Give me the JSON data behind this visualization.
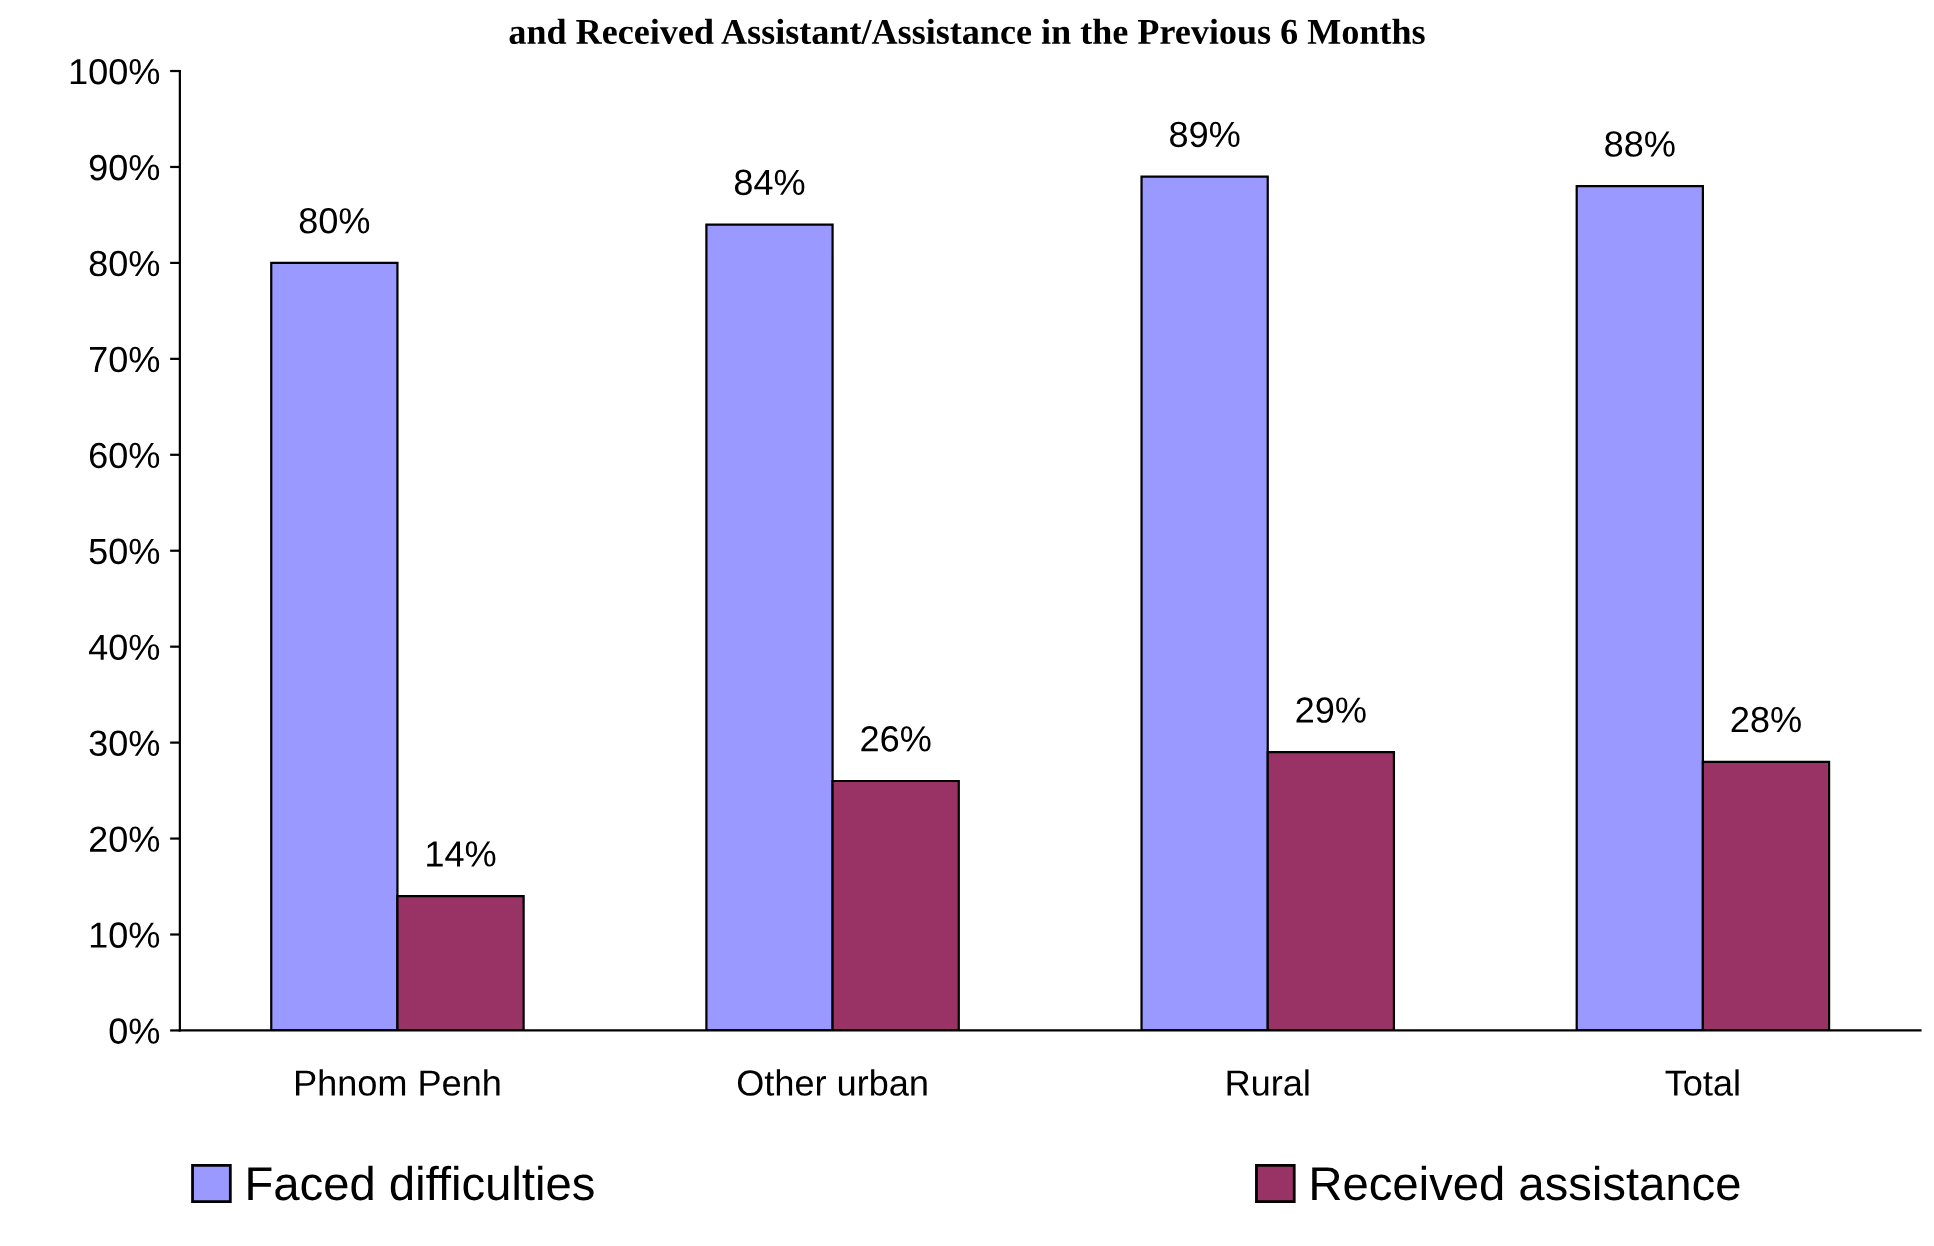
{
  "chart_data": {
    "type": "bar",
    "title": "and Received Assistant/Assistance in the Previous 6 Months",
    "categories": [
      "Phnom Penh",
      "Other urban",
      "Rural",
      "Total"
    ],
    "series": [
      {
        "name": "Faced difficulties",
        "color": "#9999ff",
        "values": [
          80,
          84,
          89,
          88
        ],
        "value_labels": [
          "80%",
          "84%",
          "89%",
          "88%"
        ]
      },
      {
        "name": "Received assistance",
        "color": "#993366",
        "values": [
          14,
          26,
          29,
          28
        ],
        "value_labels": [
          "14%",
          "26%",
          "29%",
          "28%"
        ]
      }
    ],
    "ylim": [
      0,
      100
    ],
    "yticks": [
      {
        "value": 0,
        "label": "0%"
      },
      {
        "value": 10,
        "label": "10%"
      },
      {
        "value": 20,
        "label": "20%"
      },
      {
        "value": 30,
        "label": "30%"
      },
      {
        "value": 40,
        "label": "40%"
      },
      {
        "value": 50,
        "label": "50%"
      },
      {
        "value": 60,
        "label": "60%"
      },
      {
        "value": 70,
        "label": "70%"
      },
      {
        "value": 80,
        "label": "80%"
      },
      {
        "value": 90,
        "label": "90%"
      },
      {
        "value": 100,
        "label": "100%"
      }
    ],
    "grid": false,
    "legend": "bottom"
  }
}
